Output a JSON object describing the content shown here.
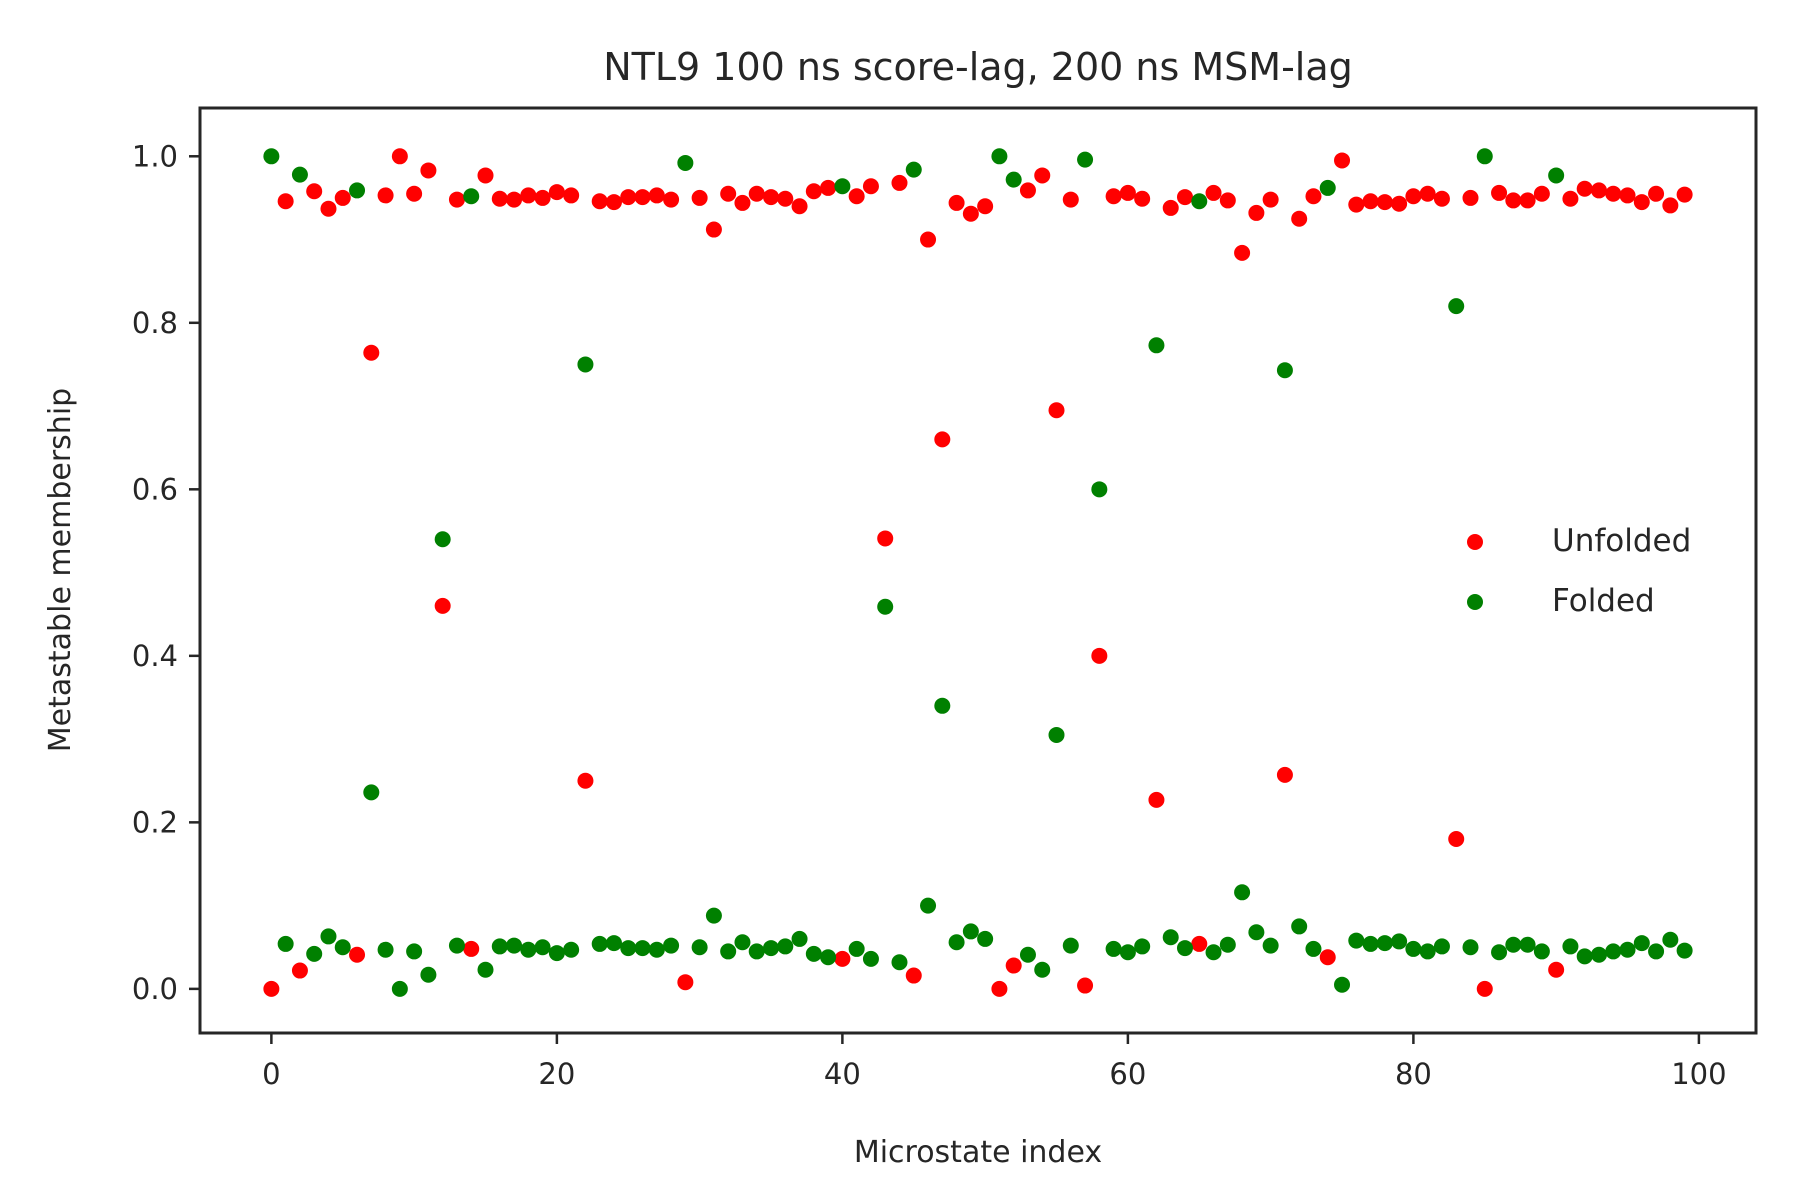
{
  "chart_data": {
    "type": "scatter",
    "title": "NTL9 100 ns score-lag, 200 ns MSM-lag",
    "xlabel": "Microstate index",
    "ylabel": "Metastable membership",
    "xlim": [
      -5,
      104
    ],
    "ylim": [
      -0.053,
      1.058
    ],
    "xticks": [
      0,
      20,
      40,
      60,
      80,
      100
    ],
    "xtick_labels": [
      "0",
      "20",
      "40",
      "60",
      "80",
      "100"
    ],
    "yticks": [
      0.0,
      0.2,
      0.4,
      0.6,
      0.8,
      1.0
    ],
    "ytick_labels": [
      "0.0",
      "0.2",
      "0.4",
      "0.6",
      "0.8",
      "1.0"
    ],
    "grid": false,
    "legend_position": "center-right",
    "x": [
      0,
      1,
      2,
      3,
      4,
      5,
      6,
      7,
      8,
      9,
      10,
      11,
      12,
      13,
      14,
      15,
      16,
      17,
      18,
      19,
      20,
      21,
      22,
      23,
      24,
      25,
      26,
      27,
      28,
      29,
      30,
      31,
      32,
      33,
      34,
      35,
      36,
      37,
      38,
      39,
      40,
      41,
      42,
      43,
      44,
      45,
      46,
      47,
      48,
      49,
      50,
      51,
      52,
      53,
      54,
      55,
      56,
      57,
      58,
      59,
      60,
      61,
      62,
      63,
      64,
      65,
      66,
      67,
      68,
      69,
      70,
      71,
      72,
      73,
      74,
      75,
      76,
      77,
      78,
      79,
      80,
      81,
      82,
      83,
      84,
      85,
      86,
      87,
      88,
      89,
      90,
      91,
      92,
      93,
      94,
      95,
      96,
      97,
      98,
      99
    ],
    "series": [
      {
        "name": "Unfolded",
        "color": "#ff0000",
        "values": [
          0.0,
          0.946,
          0.022,
          0.958,
          0.937,
          0.95,
          0.041,
          0.764,
          0.953,
          1.0,
          0.955,
          0.983,
          0.46,
          0.948,
          0.048,
          0.977,
          0.949,
          0.948,
          0.953,
          0.95,
          0.957,
          0.953,
          0.25,
          0.946,
          0.945,
          0.951,
          0.951,
          0.953,
          0.948,
          0.008,
          0.95,
          0.912,
          0.955,
          0.944,
          0.955,
          0.951,
          0.949,
          0.94,
          0.958,
          0.962,
          0.036,
          0.952,
          0.964,
          0.541,
          0.968,
          0.016,
          0.9,
          0.66,
          0.944,
          0.931,
          0.94,
          0.0,
          0.028,
          0.959,
          0.977,
          0.695,
          0.948,
          0.004,
          0.4,
          0.952,
          0.956,
          0.949,
          0.227,
          0.938,
          0.951,
          0.054,
          0.956,
          0.947,
          0.884,
          0.932,
          0.948,
          0.257,
          0.925,
          0.952,
          0.038,
          0.995,
          0.942,
          0.946,
          0.945,
          0.943,
          0.952,
          0.955,
          0.949,
          0.18,
          0.95,
          0.0,
          0.956,
          0.947,
          0.947,
          0.955,
          0.023,
          0.949,
          0.961,
          0.959,
          0.955,
          0.953,
          0.945,
          0.955,
          0.941,
          0.954
        ]
      },
      {
        "name": "Folded",
        "color": "#008000",
        "values": [
          1.0,
          0.054,
          0.978,
          0.042,
          0.063,
          0.05,
          0.959,
          0.236,
          0.047,
          0.0,
          0.045,
          0.017,
          0.54,
          0.052,
          0.952,
          0.023,
          0.051,
          0.052,
          0.047,
          0.05,
          0.043,
          0.047,
          0.75,
          0.054,
          0.055,
          0.049,
          0.049,
          0.047,
          0.052,
          0.992,
          0.05,
          0.088,
          0.045,
          0.056,
          0.045,
          0.049,
          0.051,
          0.06,
          0.042,
          0.038,
          0.964,
          0.048,
          0.036,
          0.459,
          0.032,
          0.984,
          0.1,
          0.34,
          0.056,
          0.069,
          0.06,
          1.0,
          0.972,
          0.041,
          0.023,
          0.305,
          0.052,
          0.996,
          0.6,
          0.048,
          0.044,
          0.051,
          0.773,
          0.062,
          0.049,
          0.946,
          0.044,
          0.053,
          0.116,
          0.068,
          0.052,
          0.743,
          0.075,
          0.048,
          0.962,
          0.005,
          0.058,
          0.054,
          0.055,
          0.057,
          0.048,
          0.045,
          0.051,
          0.82,
          0.05,
          1.0,
          0.044,
          0.053,
          0.053,
          0.045,
          0.977,
          0.051,
          0.039,
          0.041,
          0.045,
          0.047,
          0.055,
          0.045,
          0.059,
          0.046
        ]
      }
    ]
  }
}
